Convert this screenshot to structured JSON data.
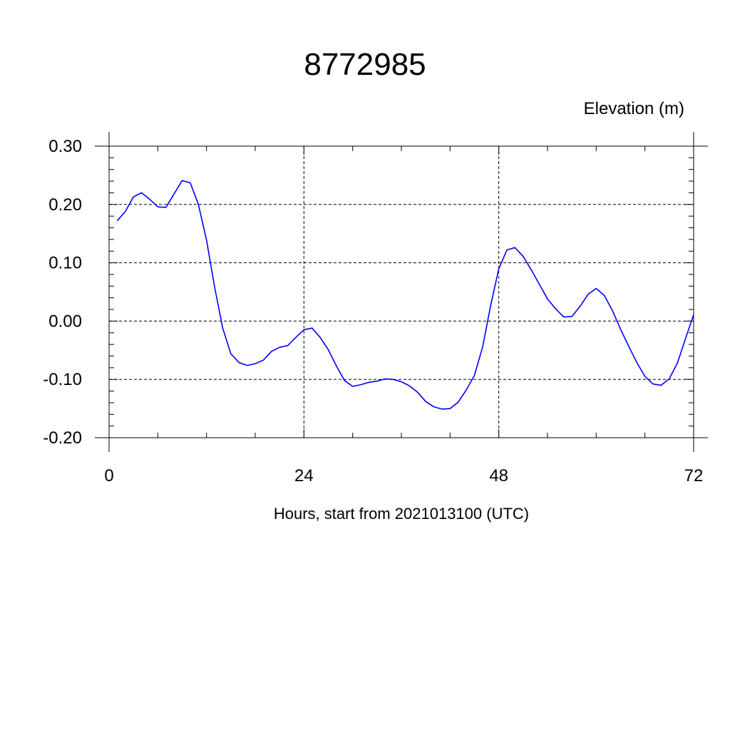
{
  "chart_data": {
    "type": "line",
    "title": "8772985",
    "ylabel": "Elevation (m)",
    "xlabel": "Hours, start from 2021013100 (UTC)",
    "xlim": [
      0,
      72
    ],
    "ylim": [
      -0.2,
      0.3
    ],
    "x_ticks": [
      0,
      24,
      48,
      72
    ],
    "x_tick_labels": [
      "0",
      "24",
      "48",
      "72"
    ],
    "y_ticks": [
      -0.2,
      -0.1,
      0.0,
      0.1,
      0.2,
      0.3
    ],
    "y_tick_labels": [
      "-0.20",
      "-0.10",
      "0.00",
      "0.10",
      "0.20",
      "0.30"
    ],
    "grid": true,
    "line_color": "#0000ff",
    "series": [
      {
        "x": [
          1,
          2,
          3,
          4,
          5,
          6,
          7,
          8,
          9,
          10,
          11,
          12,
          13,
          14,
          15,
          16,
          17,
          18,
          19,
          20,
          21,
          22,
          23,
          24,
          25,
          26,
          27,
          28,
          29,
          30,
          31,
          32,
          33,
          34,
          35,
          36,
          37,
          38,
          39,
          40,
          41,
          42,
          43,
          44,
          45,
          46,
          47,
          48,
          49,
          50,
          51,
          52,
          53,
          54,
          55,
          56,
          57,
          58,
          59,
          60,
          61,
          62,
          63,
          64,
          65,
          66,
          67,
          68,
          69,
          70,
          71,
          72
        ],
        "values": [
          0.172,
          0.188,
          0.213,
          0.22,
          0.209,
          0.196,
          0.195,
          0.218,
          0.241,
          0.237,
          0.2,
          0.139,
          0.058,
          -0.012,
          -0.056,
          -0.071,
          -0.076,
          -0.073,
          -0.067,
          -0.052,
          -0.045,
          -0.042,
          -0.028,
          -0.015,
          -0.012,
          -0.028,
          -0.049,
          -0.077,
          -0.102,
          -0.112,
          -0.109,
          -0.105,
          -0.103,
          -0.099,
          -0.1,
          -0.104,
          -0.111,
          -0.122,
          -0.138,
          -0.147,
          -0.151,
          -0.15,
          -0.139,
          -0.118,
          -0.093,
          -0.045,
          0.027,
          0.09,
          0.122,
          0.126,
          0.111,
          0.088,
          0.063,
          0.038,
          0.021,
          0.007,
          0.008,
          0.025,
          0.046,
          0.056,
          0.044,
          0.018,
          -0.014,
          -0.043,
          -0.071,
          -0.095,
          -0.108,
          -0.11,
          -0.099,
          -0.072,
          -0.03,
          0.011
        ]
      }
    ]
  }
}
